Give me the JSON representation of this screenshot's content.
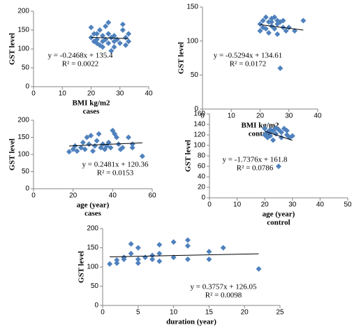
{
  "chart_data": [
    {
      "type": "scatter",
      "ylabel": "GST level",
      "xlabel": "BMI kg/m2",
      "subtitle": "cases",
      "color": "#4f81bd",
      "x": [
        20,
        20,
        21,
        21,
        22,
        22,
        23,
        23,
        24,
        24,
        25,
        25,
        26,
        26,
        26,
        27,
        27,
        28,
        28,
        28,
        29,
        30,
        31,
        31,
        32,
        32,
        33,
        33,
        24,
        22
      ],
      "values": [
        157,
        130,
        120,
        140,
        115,
        125,
        150,
        110,
        135,
        120,
        160,
        125,
        170,
        115,
        140,
        130,
        95,
        105,
        120,
        135,
        125,
        115,
        165,
        150,
        130,
        110,
        140,
        120,
        105,
        140
      ],
      "xlim": [
        0,
        40
      ],
      "xticks": [
        0,
        10,
        20,
        30,
        40
      ],
      "ylim": [
        0,
        200
      ],
      "yticks": [
        0,
        50,
        100,
        150,
        200
      ],
      "trendline": {
        "slope": -0.2468,
        "intercept": 135.4
      },
      "annotations": [
        "y = -0.2468x + 135.4",
        "R² = 0.0022"
      ]
    },
    {
      "type": "scatter",
      "ylabel": "GST level",
      "xlabel": "BMI kg/m2",
      "subtitle": "control",
      "color": "#4f81bd",
      "x": [
        20,
        20,
        21,
        21,
        22,
        22,
        23,
        23,
        24,
        24,
        25,
        25,
        26,
        26,
        26,
        27,
        27,
        28,
        28,
        29,
        30,
        32,
        35,
        24
      ],
      "values": [
        125,
        115,
        130,
        120,
        135,
        118,
        128,
        112,
        133,
        122,
        135,
        118,
        130,
        110,
        125,
        128,
        60,
        120,
        130,
        115,
        120,
        115,
        130,
        128
      ],
      "xlim": [
        0,
        40
      ],
      "xticks": [
        0,
        10,
        20,
        30,
        40
      ],
      "ylim": [
        0,
        150
      ],
      "yticks": [
        0,
        50,
        100,
        150
      ],
      "trendline": {
        "slope": -0.5294,
        "intercept": 134.61
      },
      "annotations": [
        "y = -0.5294x + 134.61",
        "R² = 0.0172"
      ]
    },
    {
      "type": "scatter",
      "ylabel": "GST level",
      "xlabel": "age (year)",
      "subtitle": "cases",
      "color": "#4f81bd",
      "x": [
        18,
        20,
        21,
        22,
        24,
        25,
        26,
        27,
        28,
        29,
        30,
        31,
        32,
        33,
        34,
        35,
        36,
        37,
        38,
        39,
        40,
        41,
        42,
        43,
        44,
        45,
        48,
        50,
        50,
        55
      ],
      "values": [
        108,
        115,
        125,
        110,
        120,
        135,
        115,
        150,
        130,
        155,
        110,
        125,
        140,
        160,
        120,
        130,
        115,
        125,
        135,
        120,
        170,
        160,
        150,
        130,
        115,
        120,
        150,
        130,
        120,
        95
      ],
      "xlim": [
        0,
        60
      ],
      "xticks": [
        0,
        20,
        40,
        60
      ],
      "ylim": [
        0,
        200
      ],
      "yticks": [
        0,
        50,
        100,
        150,
        200
      ],
      "trendline": {
        "slope": 0.2481,
        "intercept": 120.36
      },
      "annotations": [
        "y = 0.2481x + 120.36",
        "R² = 0.0153"
      ]
    },
    {
      "type": "scatter",
      "ylabel": "GST level",
      "xlabel": "age (year)",
      "subtitle": "control",
      "color": "#4f81bd",
      "x": [
        20,
        20,
        21,
        21,
        22,
        22,
        23,
        23,
        24,
        24,
        25,
        25,
        26,
        26,
        27,
        28,
        28,
        29,
        30,
        22
      ],
      "values": [
        132,
        120,
        125,
        115,
        130,
        118,
        128,
        110,
        133,
        122,
        130,
        60,
        125,
        115,
        132,
        120,
        128,
        115,
        118,
        125
      ],
      "xlim": [
        0,
        50
      ],
      "xticks": [
        0,
        10,
        20,
        30,
        40,
        50
      ],
      "ylim": [
        0,
        160
      ],
      "yticks": [
        0,
        20,
        40,
        60,
        80,
        100,
        120,
        140,
        160
      ],
      "trendline": {
        "slope": -1.7376,
        "intercept": 161.8
      },
      "annotations": [
        "y = -1.7376x + 161.8",
        "R² = 0.0786"
      ]
    },
    {
      "type": "scatter",
      "ylabel": "GST level",
      "xlabel": "duration (year)",
      "color": "#4f81bd",
      "x": [
        1,
        2,
        2,
        3,
        3,
        4,
        4,
        5,
        5,
        5,
        6,
        7,
        7,
        8,
        8,
        8,
        10,
        10,
        12,
        12,
        12,
        15,
        15,
        17,
        22
      ],
      "values": [
        108,
        110,
        118,
        125,
        120,
        135,
        160,
        150,
        120,
        110,
        125,
        130,
        120,
        158,
        135,
        115,
        165,
        125,
        170,
        155,
        120,
        140,
        120,
        150,
        95
      ],
      "xlim": [
        0,
        25
      ],
      "xticks": [
        0,
        5,
        10,
        15,
        20,
        25
      ],
      "ylim": [
        0,
        200
      ],
      "yticks": [
        0,
        50,
        100,
        150,
        200
      ],
      "trendline": {
        "slope": 0.3757,
        "intercept": 126.05
      },
      "annotations": [
        "y = 0.3757x + 126.05",
        "R² = 0.0098"
      ]
    }
  ]
}
